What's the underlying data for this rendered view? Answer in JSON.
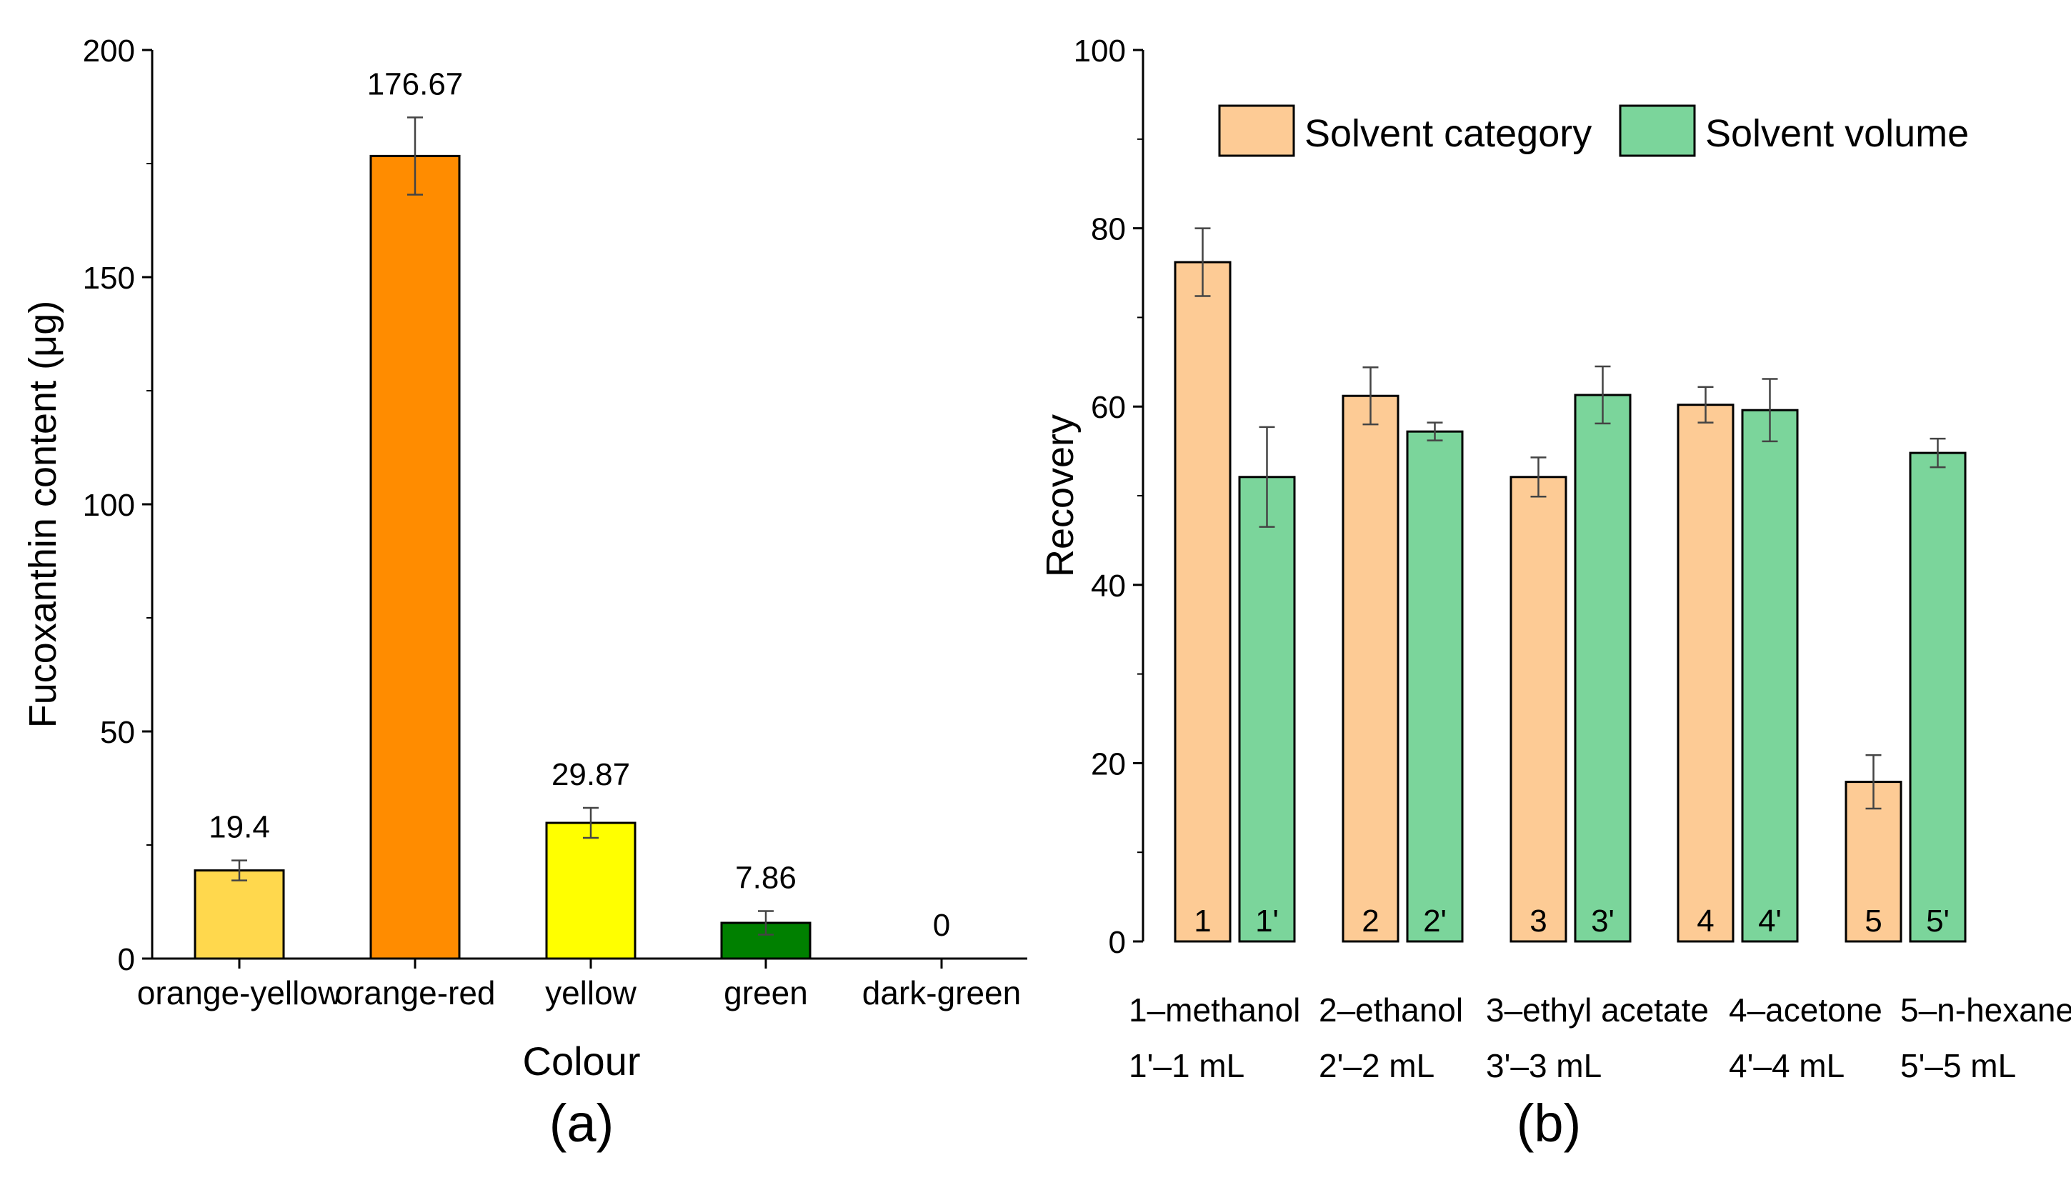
{
  "chart_data": [
    {
      "type": "bar",
      "panel_label": "(a)",
      "title": "",
      "xlabel": "Colour",
      "ylabel": "Fucoxanthin content (μg)",
      "ylim": [
        0,
        200
      ],
      "yticks": [
        "0",
        "50",
        "100",
        "150",
        "200"
      ],
      "categories": [
        "orange-yellow",
        "orange-red",
        "yellow",
        "green",
        "dark-green"
      ],
      "values": [
        19.4,
        176.67,
        29.87,
        7.86,
        0
      ],
      "value_labels": [
        "19.4",
        "176.67",
        "29.87",
        "7.86",
        "0"
      ],
      "errors": [
        2.2,
        8.5,
        3.3,
        2.6,
        0
      ],
      "colors": [
        "#FFD84D",
        "#FF8C00",
        "#FFFF00",
        "#008000",
        "#006400"
      ]
    },
    {
      "type": "bar",
      "panel_label": "(b)",
      "title": "",
      "xlabel": "",
      "ylabel": "Recovery",
      "ylim": [
        0,
        100
      ],
      "yticks": [
        "0",
        "20",
        "40",
        "60",
        "80",
        "100"
      ],
      "legend": [
        "Solvent category",
        "Solvent volume"
      ],
      "legend_position": "top",
      "series": [
        {
          "name": "Solvent category",
          "color": "#FDCB95",
          "bar_labels": [
            "1",
            "2",
            "3",
            "4",
            "5"
          ],
          "values": [
            76.2,
            61.2,
            52.1,
            60.2,
            17.9
          ],
          "errors": [
            3.8,
            3.2,
            2.2,
            2.0,
            3.0
          ]
        },
        {
          "name": "Solvent volume",
          "color": "#7BD59B",
          "bar_labels": [
            "1'",
            "2'",
            "3'",
            "4'",
            "5'"
          ],
          "values": [
            52.1,
            57.2,
            61.3,
            59.6,
            54.8
          ],
          "errors": [
            5.6,
            1.0,
            3.2,
            3.5,
            1.6
          ]
        }
      ],
      "group_labels_line1": [
        "1–methanol",
        "2–ethanol",
        "3–ethyl acetate",
        "4–acetone",
        "5–n-hexane"
      ],
      "group_labels_line2": [
        "1'–1 mL",
        "2'–2 mL",
        "3'–3 mL",
        "4'–4 mL",
        "5'–5 mL"
      ]
    }
  ]
}
